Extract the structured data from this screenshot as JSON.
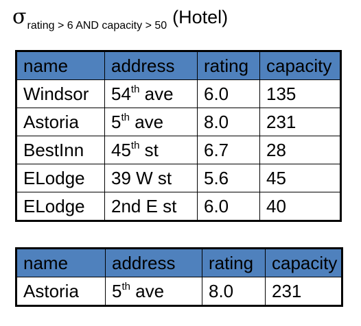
{
  "formula": {
    "symbol": "σ",
    "condition": "rating > 6 AND capacity > 50",
    "relation": "(Hotel)"
  },
  "hotel_table": {
    "columns": [
      "name",
      "address",
      "rating",
      "capacity"
    ],
    "rows": [
      {
        "name": "Windsor",
        "address_main": "54",
        "address_sup": "th",
        "address_rest": " ave",
        "rating": "6.0",
        "capacity": "135"
      },
      {
        "name": "Astoria",
        "address_main": "5",
        "address_sup": "th",
        "address_rest": " ave",
        "rating": "8.0",
        "capacity": "231"
      },
      {
        "name": "BestInn",
        "address_main": "45",
        "address_sup": "th",
        "address_rest": " st",
        "rating": "6.7",
        "capacity": "28"
      },
      {
        "name": "ELodge",
        "address_main": "39 W st",
        "address_sup": "",
        "address_rest": "",
        "rating": "5.6",
        "capacity": "45"
      },
      {
        "name": "ELodge",
        "address_main": "2nd E st",
        "address_sup": "",
        "address_rest": "",
        "rating": "6.0",
        "capacity": "40"
      }
    ]
  },
  "result_table": {
    "columns": [
      "name",
      "address",
      "rating",
      "capacity"
    ],
    "rows": [
      {
        "name": "Astoria",
        "address_main": "5",
        "address_sup": "th",
        "address_rest": " ave",
        "rating": "8.0",
        "capacity": "231"
      }
    ]
  },
  "colors": {
    "header_bg": "#4f81bd",
    "border": "#000000"
  }
}
